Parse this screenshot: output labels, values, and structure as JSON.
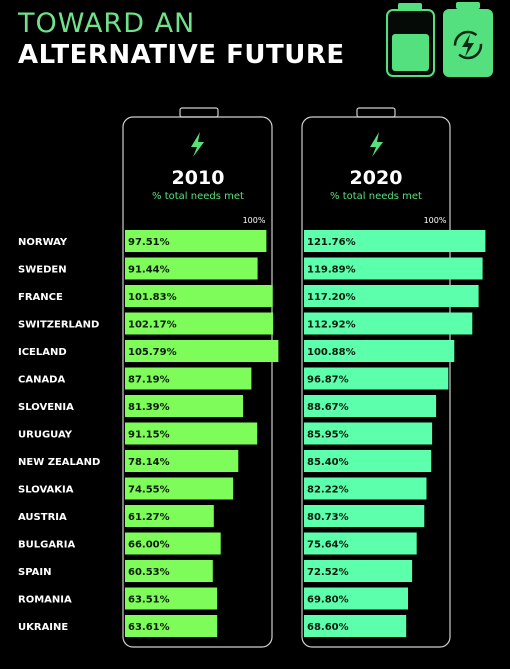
{
  "header": {
    "title_line1": "TOWARD AN",
    "title_line2": "ALTERNATIVE FUTURE"
  },
  "icons": {
    "top_battery_left": "battery-half-icon",
    "top_battery_right": "battery-recharge-icon",
    "panel_icon": "lightning-bolt-icon"
  },
  "colors": {
    "background": "#000000",
    "bar_2010": "#7dfc5a",
    "bar_2020": "#5cffab",
    "accent": "#58e07a"
  },
  "chart_data": {
    "type": "bar",
    "orientation": "horizontal",
    "categories": [
      "NORWAY",
      "SWEDEN",
      "FRANCE",
      "SWITZERLAND",
      "ICELAND",
      "CANADA",
      "SLOVENIA",
      "URUGUAY",
      "NEW ZEALAND",
      "SLOVAKIA",
      "AUSTRIA",
      "BULGARIA",
      "SPAIN",
      "ROMANIA",
      "UKRAINE"
    ],
    "reference_label": "100%",
    "series": [
      {
        "name": "2010",
        "subtitle": "% total needs met",
        "values": [
          97.51,
          91.44,
          101.83,
          102.17,
          105.79,
          87.19,
          81.39,
          91.15,
          78.14,
          74.55,
          61.27,
          66.0,
          60.53,
          63.51,
          63.61
        ],
        "labels": [
          "97.51%",
          "91.44%",
          "101.83%",
          "102.17%",
          "105.79%",
          "87.19%",
          "81.39%",
          "91.15%",
          "78.14%",
          "74.55%",
          "61.27%",
          "66.00%",
          "60.53%",
          "63.51%",
          "63.61%"
        ]
      },
      {
        "name": "2020",
        "subtitle": "% total needs met",
        "values": [
          121.76,
          119.89,
          117.2,
          112.92,
          100.88,
          96.87,
          88.67,
          85.95,
          85.4,
          82.22,
          80.73,
          75.64,
          72.52,
          69.8,
          68.6
        ],
        "labels": [
          "121.76%",
          "119.89%",
          "117.20%",
          "112.92%",
          "100.88%",
          "96.87%",
          "88.67%",
          "85.95%",
          "85.40%",
          "82.22%",
          "80.73%",
          "75.64%",
          "72.52%",
          "69.80%",
          "68.60%"
        ]
      }
    ]
  }
}
